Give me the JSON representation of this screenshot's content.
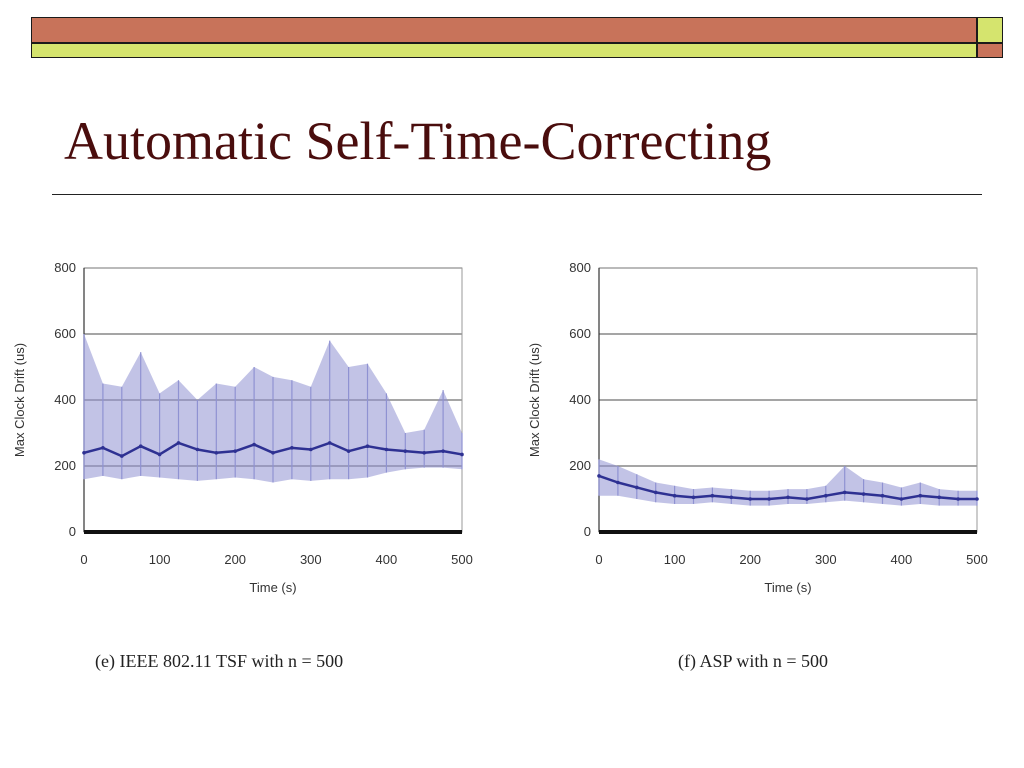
{
  "slide": {
    "title": "Automatic Self-Time-Correcting",
    "colors": {
      "title": "#4a0d0d",
      "bar_main": "#c8735a",
      "bar_accent": "#d5e46e",
      "series": "#2e3192",
      "series_light": "#8f92d2"
    }
  },
  "chart_data": [
    {
      "type": "line",
      "caption": "(e) IEEE 802.11 TSF with n = 500",
      "xlabel": "Time (s)",
      "ylabel": "Max Clock Drift (us)",
      "xlim": [
        0,
        500
      ],
      "ylim": [
        0,
        800
      ],
      "xticks": [
        0,
        100,
        200,
        300,
        400,
        500
      ],
      "yticks": [
        0,
        200,
        400,
        600,
        800
      ],
      "grid": "horizontal",
      "series": [
        {
          "x": [
            0,
            25,
            50,
            75,
            100,
            125,
            150,
            175,
            200,
            225,
            250,
            275,
            300,
            325,
            350,
            375,
            400,
            425,
            450,
            475,
            500
          ],
          "y": [
            240,
            255,
            230,
            260,
            235,
            270,
            250,
            240,
            245,
            265,
            240,
            255,
            250,
            270,
            245,
            260,
            250,
            245,
            240,
            245,
            235
          ],
          "y_low": [
            160,
            170,
            160,
            170,
            165,
            160,
            155,
            160,
            165,
            160,
            150,
            160,
            155,
            160,
            160,
            165,
            180,
            190,
            195,
            195,
            190
          ],
          "y_high": [
            600,
            450,
            440,
            545,
            420,
            460,
            400,
            450,
            440,
            500,
            470,
            460,
            440,
            580,
            500,
            510,
            420,
            300,
            310,
            430,
            300
          ]
        }
      ]
    },
    {
      "type": "line",
      "caption": "(f) ASP with n = 500",
      "xlabel": "Time (s)",
      "ylabel": "Max Clock Drift (us)",
      "xlim": [
        0,
        500
      ],
      "ylim": [
        0,
        800
      ],
      "xticks": [
        0,
        100,
        200,
        300,
        400,
        500
      ],
      "yticks": [
        0,
        200,
        400,
        600,
        800
      ],
      "grid": "horizontal",
      "series": [
        {
          "x": [
            0,
            25,
            50,
            75,
            100,
            125,
            150,
            175,
            200,
            225,
            250,
            275,
            300,
            325,
            350,
            375,
            400,
            425,
            450,
            475,
            500
          ],
          "y": [
            170,
            150,
            135,
            120,
            110,
            105,
            110,
            105,
            100,
            100,
            105,
            100,
            110,
            120,
            115,
            110,
            100,
            110,
            105,
            100,
            100
          ],
          "y_low": [
            110,
            110,
            100,
            90,
            85,
            85,
            90,
            85,
            80,
            80,
            85,
            85,
            90,
            95,
            90,
            85,
            80,
            85,
            80,
            80,
            80
          ],
          "y_high": [
            220,
            200,
            175,
            150,
            140,
            130,
            135,
            130,
            125,
            125,
            130,
            130,
            140,
            200,
            160,
            150,
            135,
            150,
            130,
            125,
            125
          ]
        }
      ]
    }
  ]
}
